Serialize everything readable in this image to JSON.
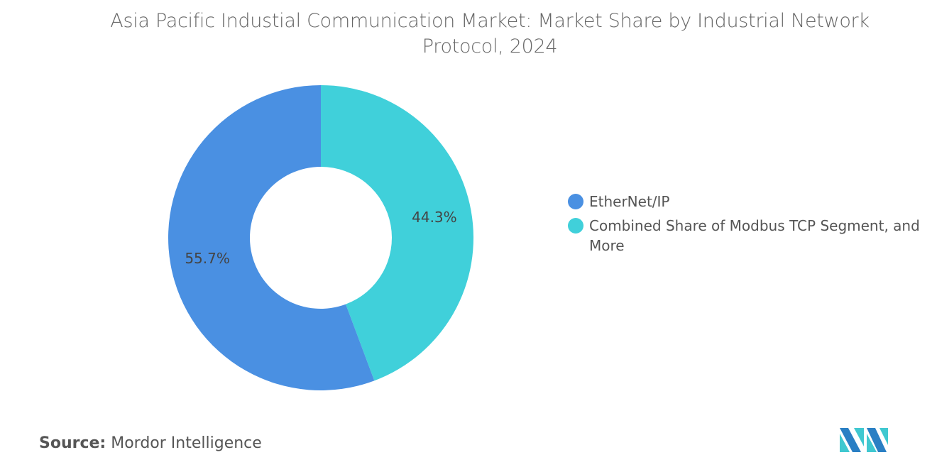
{
  "title": "Asia Pacific Industial Communication Market: Market Share by Industrial Network Protocol, 2024",
  "chart_data": {
    "type": "pie",
    "donut": true,
    "title": "Asia Pacific Industial Communication Market: Market Share by Industrial Network Protocol, 2024",
    "categories": [
      "EtherNet/IP",
      "Combined Share of Modbus TCP Segment, and More"
    ],
    "values": [
      55.7,
      44.3
    ],
    "labels": [
      "55.7%",
      "44.3%"
    ],
    "colors": [
      "#4A90E2",
      "#40D0DA"
    ],
    "legend_position": "right"
  },
  "source": {
    "label": "Source:",
    "value": "Mordor Intelligence"
  },
  "logo": {
    "name": "mordor-intelligence-logo",
    "colors": [
      "#2A7FC4",
      "#40C8D0"
    ]
  }
}
